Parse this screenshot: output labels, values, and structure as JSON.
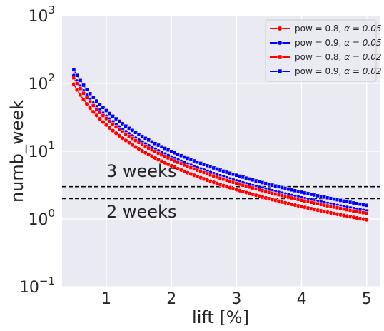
{
  "chart_data": {
    "type": "line",
    "xlabel": "lift [%]",
    "ylabel": "numb_week",
    "x_ticks": [
      1,
      2,
      3,
      4,
      5
    ],
    "x_tick_labels": [
      "1",
      "2",
      "3",
      "4",
      "5"
    ],
    "xlim": [
      0.32,
      5.2
    ],
    "yscale": "log",
    "ylim": [
      0.1,
      1000
    ],
    "y_ticks": [
      0.1,
      1,
      10,
      100,
      1000
    ],
    "y_tick_labels": [
      {
        "base": "10",
        "exp": "−1"
      },
      {
        "base": "10",
        "exp": "0"
      },
      {
        "base": "10",
        "exp": "1"
      },
      {
        "base": "10",
        "exp": "2"
      },
      {
        "base": "10",
        "exp": "3"
      }
    ],
    "grid": true,
    "legend_position": "top-right",
    "x_start": 0.5,
    "x_end": 5.0,
    "x_step": 0.05,
    "series": [
      {
        "name": "pow = 0.8, ",
        "alpha_text": "α = 0.05",
        "color": "#ff0000",
        "marker": "circle",
        "values_at_x": [
          [
            0.5,
            98.0
          ],
          [
            1.0,
            24.5
          ],
          [
            2.0,
            6.1
          ],
          [
            3.0,
            2.7
          ],
          [
            4.0,
            1.5
          ],
          [
            5.0,
            0.98
          ]
        ]
      },
      {
        "name": "pow = 0.9, ",
        "alpha_text": "α = 0.05",
        "color": "#0000ff",
        "marker": "circle",
        "values_at_x": [
          [
            0.5,
            131.0
          ],
          [
            1.0,
            32.8
          ],
          [
            2.0,
            8.2
          ],
          [
            3.0,
            3.6
          ],
          [
            4.0,
            2.05
          ],
          [
            5.0,
            1.31
          ]
        ]
      },
      {
        "name": "pow = 0.8, ",
        "alpha_text": "α = 0.02",
        "color": "#ff0000",
        "marker": "square",
        "values_at_x": [
          [
            0.5,
            121.0
          ],
          [
            1.0,
            30.3
          ],
          [
            2.0,
            7.6
          ],
          [
            3.0,
            3.35
          ],
          [
            4.0,
            1.9
          ],
          [
            5.0,
            1.21
          ]
        ]
      },
      {
        "name": "pow = 0.9, ",
        "alpha_text": "α = 0.02",
        "color": "#0000ff",
        "marker": "square",
        "values_at_x": [
          [
            0.5,
            159.0
          ],
          [
            1.0,
            39.8
          ],
          [
            2.0,
            9.95
          ],
          [
            3.0,
            4.4
          ],
          [
            4.0,
            2.5
          ],
          [
            5.0,
            1.59
          ]
        ]
      }
    ],
    "reference_lines": [
      {
        "y": 3,
        "style": "dashed",
        "color": "#000000"
      },
      {
        "y": 2,
        "style": "dashed",
        "color": "#000000"
      }
    ],
    "annotations": [
      {
        "text": "3 weeks",
        "x": 1.0,
        "y": 4.2
      },
      {
        "text": "2 weeks",
        "x": 1.0,
        "y": 1.05
      }
    ],
    "colors": {
      "background": "#eaeaf2",
      "grid": "#ffffff",
      "text": "#262626"
    }
  }
}
